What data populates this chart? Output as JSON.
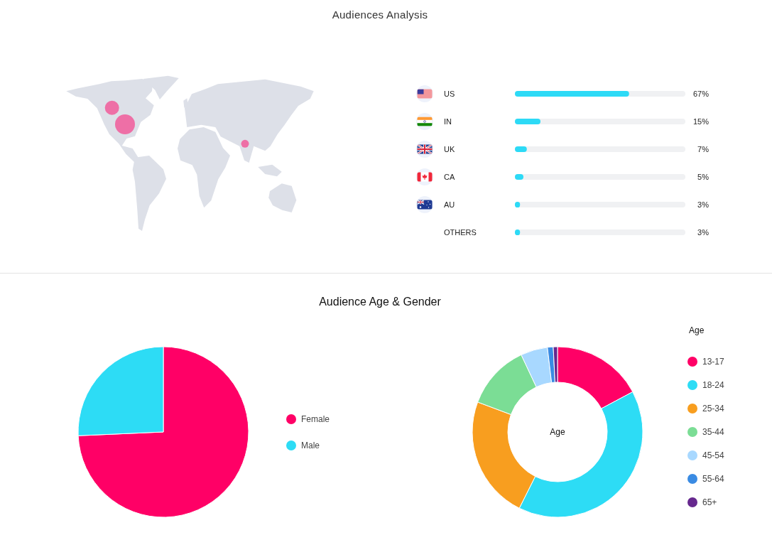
{
  "chart_data": [
    {
      "type": "bar",
      "title": "Audiences Analysis",
      "orientation": "horizontal",
      "categories": [
        "US",
        "IN",
        "UK",
        "CA",
        "AU",
        "OTHERS"
      ],
      "values": [
        67,
        15,
        7,
        5,
        3,
        3
      ],
      "value_labels": [
        "67%",
        "15%",
        "7%",
        "5%",
        "3%",
        "3%"
      ],
      "color": "#2ddaf6",
      "xlim": [
        0,
        100
      ],
      "tick_labels": "y"
    },
    {
      "type": "pie",
      "title": "Audience Age & Gender",
      "categories": [
        "Female",
        "Male"
      ],
      "values": [
        74.3,
        25.7
      ],
      "colors": [
        "#ff0066",
        "#2ddcf5"
      ],
      "legend": "right"
    },
    {
      "type": "donut",
      "categories": [
        "13-17",
        "18-24",
        "25-34",
        "35-44",
        "45-54",
        "55-64",
        "65+"
      ],
      "values": [
        17.2,
        40.2,
        23.3,
        12.3,
        5.1,
        1.1,
        0.8
      ],
      "colors": [
        "#ff0066",
        "#2ddcf5",
        "#f89e1f",
        "#7bdd95",
        "#a8d8ff",
        "#3a8be3",
        "#66288e"
      ],
      "legend": "right",
      "legend_title": "Age",
      "annotations": [
        "Age"
      ]
    }
  ]
}
